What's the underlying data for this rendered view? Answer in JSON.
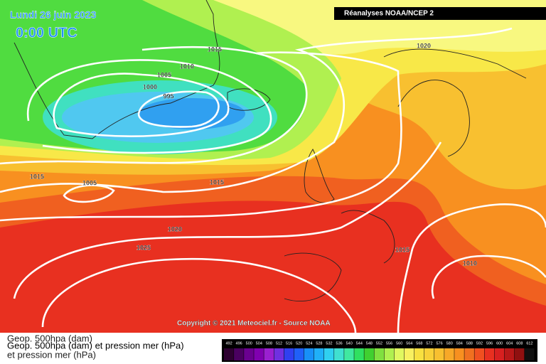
{
  "header": {
    "date": "Lundi 26 juin 2023",
    "time": "0:00 UTC",
    "source": "Réanalyses NOAA/NCEP 2"
  },
  "isobar_labels": [
    1015,
    1020,
    1010,
    1005,
    1000,
    995,
    1005,
    1015,
    1015,
    1020,
    1025,
    1015,
    1010
  ],
  "copyright": "Copyright © 2021 Meteociel.fr - Source NOAA",
  "caption_lines": [
    "Geop. 500hpa (dam)",
    "et pression mer (hPa)"
  ],
  "caption": "Geop. 500hpa (dam) et pression mer (hPa)",
  "legend": {
    "labels": [
      "492",
      "496",
      "500",
      "504",
      "508",
      "512",
      "516",
      "520",
      "524",
      "528",
      "532",
      "536",
      "540",
      "544",
      "548",
      "552",
      "556",
      "560",
      "564",
      "568",
      "572",
      "576",
      "580",
      "584",
      "588",
      "592",
      "596",
      "600",
      "604",
      "608",
      "612"
    ],
    "colors": [
      "#2d0030",
      "#4a0060",
      "#6a0090",
      "#8000b0",
      "#9a20d0",
      "#7030e0",
      "#3040f0",
      "#2060f8",
      "#1890f8",
      "#20b0f8",
      "#30d0f0",
      "#40e0d0",
      "#40e8a0",
      "#30e060",
      "#40d030",
      "#80e040",
      "#b0f050",
      "#e0f860",
      "#f8f060",
      "#f8e040",
      "#f8d038",
      "#f8c030",
      "#f8a828",
      "#f89020",
      "#f07020",
      "#f05020",
      "#e83020",
      "#d82020",
      "#b81818",
      "#901010",
      "#101010"
    ]
  }
}
